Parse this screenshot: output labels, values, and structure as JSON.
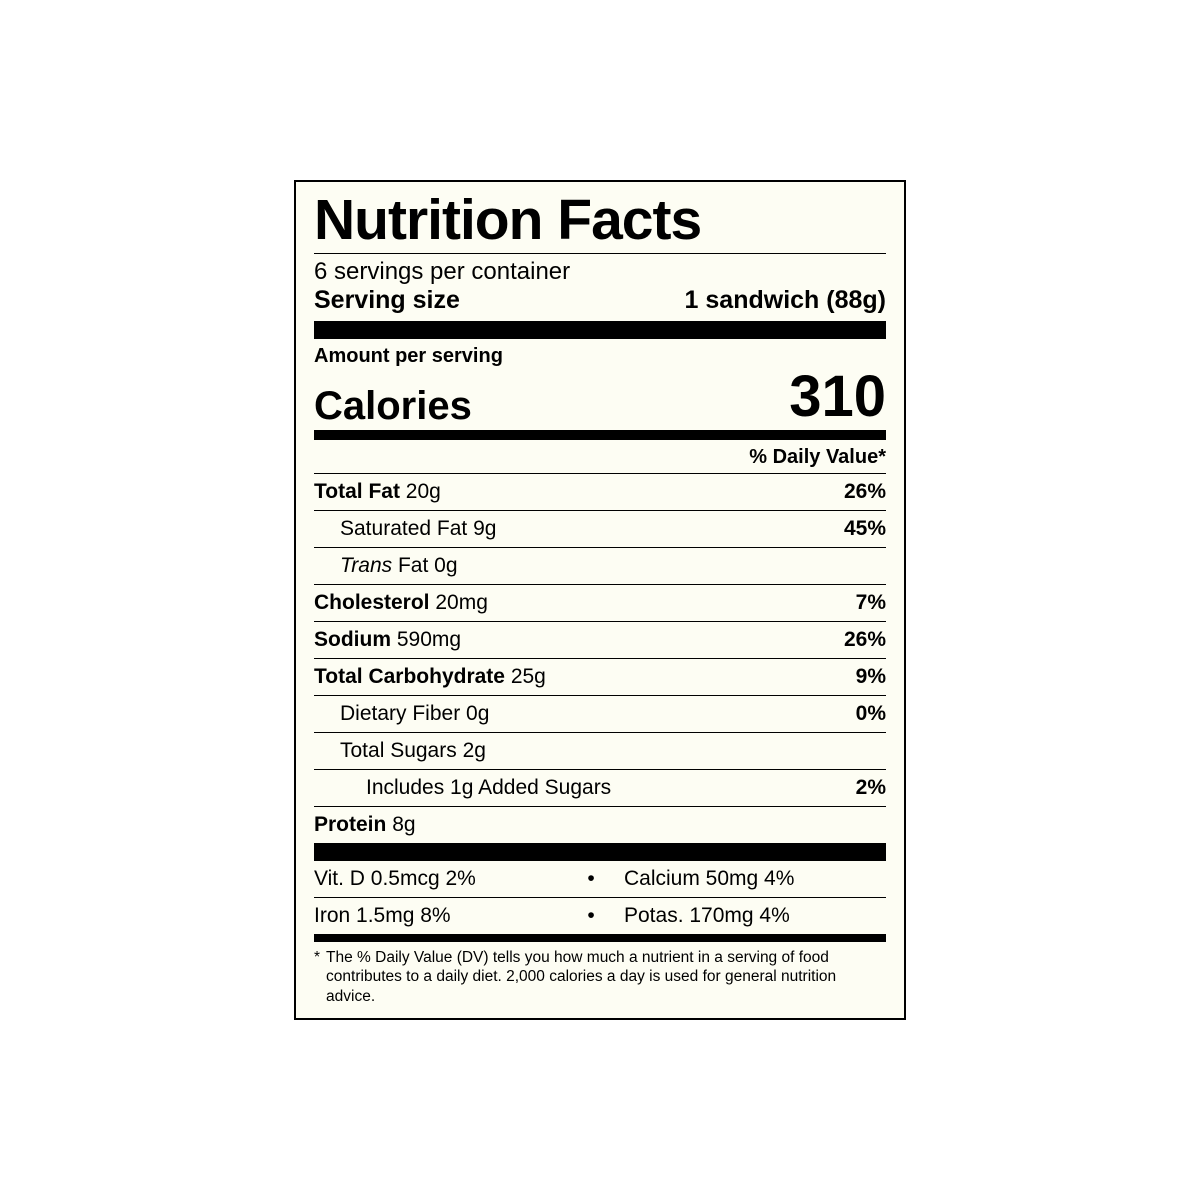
{
  "title": "Nutrition Facts",
  "servings_per_container": "6 servings per container",
  "serving_size_label": "Serving size",
  "serving_size_value": "1 sandwich (88g)",
  "amount_per_serving": "Amount per serving",
  "calories_label": "Calories",
  "calories_value": "310",
  "dv_header": "% Daily Value*",
  "nutrients": {
    "total_fat": {
      "label": "Total Fat",
      "amount": "20g",
      "dv": "26%"
    },
    "sat_fat": {
      "label": "Saturated Fat",
      "amount": "9g",
      "dv": "45%"
    },
    "trans_fat": {
      "prefix": "Trans",
      "suffix": " Fat 0g"
    },
    "cholesterol": {
      "label": "Cholesterol",
      "amount": "20mg",
      "dv": "7%"
    },
    "sodium": {
      "label": "Sodium",
      "amount": "590mg",
      "dv": "26%"
    },
    "total_carb": {
      "label": "Total Carbohydrate",
      "amount": "25g",
      "dv": "9%"
    },
    "fiber": {
      "label": "Dietary Fiber",
      "amount": "0g",
      "dv": "0%"
    },
    "sugars": {
      "label": "Total Sugars",
      "amount": "2g"
    },
    "added_sugars": {
      "text": "Includes 1g Added Sugars",
      "dv": "2%"
    },
    "protein": {
      "label": "Protein",
      "amount": "8g"
    }
  },
  "vitamins": {
    "row1": {
      "left": "Vit. D 0.5mcg 2%",
      "right": "Calcium 50mg 4%"
    },
    "row2": {
      "left": "Iron 1.5mg 8%",
      "right": "Potas. 170mg 4%"
    }
  },
  "dot": "•",
  "footnote_star": "*",
  "footnote": "The % Daily Value (DV) tells you how much a nutrient in a serving of food contributes to a daily diet. 2,000 calories a day is used for general nutrition advice.",
  "colors": {
    "background": "#fdfdf3",
    "text": "#000000",
    "page": "#ffffff"
  }
}
